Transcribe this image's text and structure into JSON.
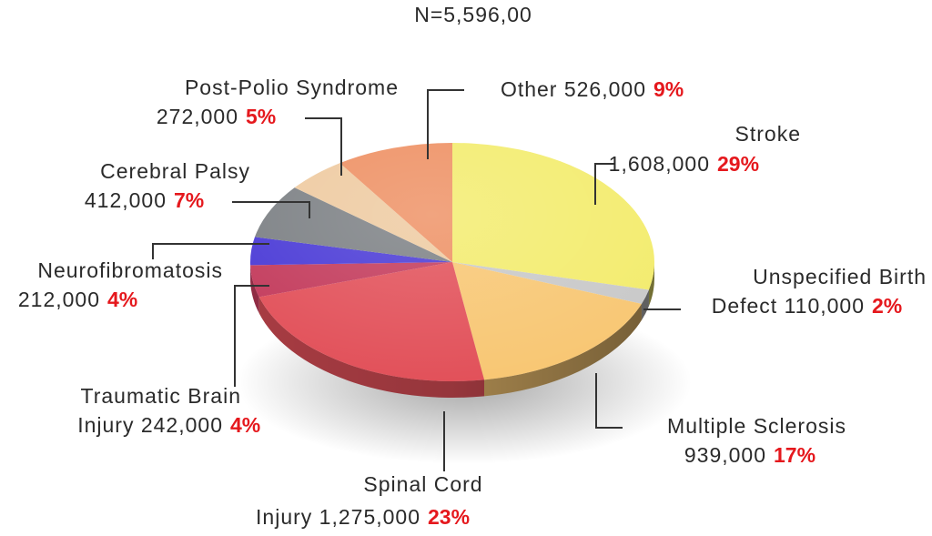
{
  "chart_data": {
    "type": "pie",
    "title": "N=5,596,00",
    "slices": [
      {
        "name": "Stroke",
        "line1": "Stroke",
        "line2": "1,608,000",
        "value": 1608000,
        "percent": "29%",
        "color": "#f3ec6e"
      },
      {
        "name": "Unspecified Birth Defect",
        "line1": "Unspecified Birth",
        "line2": "Defect 110,000",
        "value": 110000,
        "percent": "2%",
        "color": "#c9c9c9"
      },
      {
        "name": "Multiple Sclerosis",
        "line1": "Multiple Sclerosis",
        "line2": "939,000",
        "value": 939000,
        "percent": "17%",
        "color": "#f8c774"
      },
      {
        "name": "Spinal Cord Injury",
        "line1": "Spinal Cord",
        "line2": "Injury 1,275,000",
        "value": 1275000,
        "percent": "23%",
        "color": "#e2515a"
      },
      {
        "name": "Traumatic Brain Injury",
        "line1": "Traumatic Brain",
        "line2": "Injury 242,000",
        "value": 242000,
        "percent": "4%",
        "color": "#c33b5c"
      },
      {
        "name": "Neurofibromatosis",
        "line1": "Neurofibromatosis",
        "line2": "212,000",
        "value": 212000,
        "percent": "4%",
        "color": "#4a3ad6"
      },
      {
        "name": "Cerebral Palsy",
        "line1": "Cerebral Palsy",
        "line2": "412,000",
        "value": 412000,
        "percent": "7%",
        "color": "#7c8084"
      },
      {
        "name": "Post-Polio Syndrome",
        "line1": "Post-Polio Syndrome",
        "line2": "272,000",
        "value": 272000,
        "percent": "5%",
        "color": "#eecaa0"
      },
      {
        "name": "Other",
        "line1": "",
        "line2": "Other 526,000",
        "value": 526000,
        "percent": "9%",
        "color": "#ee9063"
      }
    ]
  }
}
